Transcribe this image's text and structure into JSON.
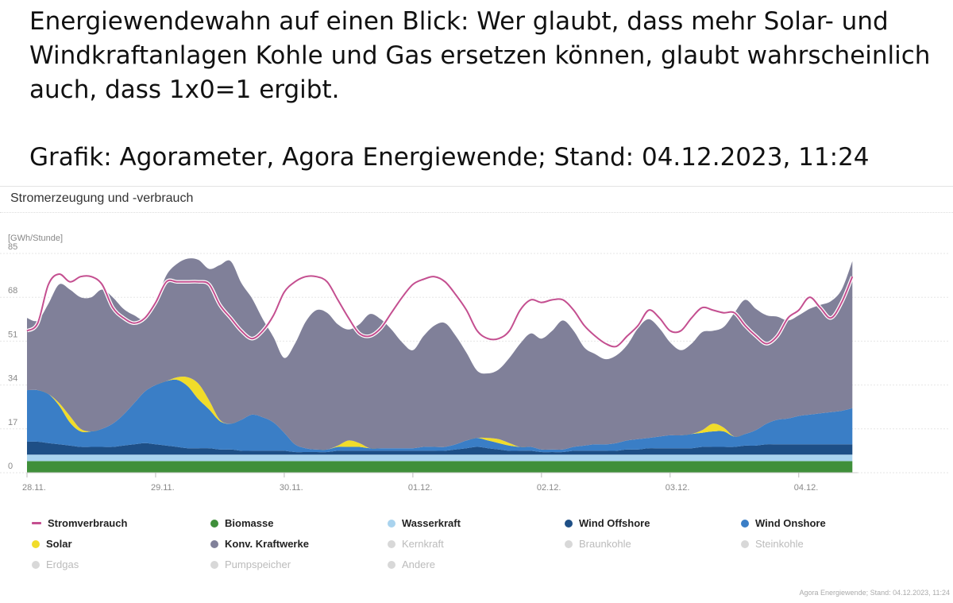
{
  "post": {
    "text": "Energiewendewahn auf einen Blick: Wer glaubt, dass mehr Solar- und Windkraftanlagen Kohle und Gas ersetzen können, glaubt wahrscheinlich auch, dass 1x0=1 ergibt.",
    "source": "Grafik: Agorameter, Agora Energiewende; Stand: 04.12.2023, 11:24"
  },
  "chart_data": {
    "type": "area",
    "title": "Stromerzeugung und -verbrauch",
    "ylabel": "[GWh/Stunde]",
    "ylim": [
      0,
      85
    ],
    "y_ticks": [
      "0",
      "17",
      "34",
      "51",
      "68",
      "85"
    ],
    "x_ticks": [
      "28.11.",
      "29.11.",
      "30.11.",
      "01.12.",
      "02.12.",
      "03.12.",
      "04.12."
    ],
    "x_tick_hours": [
      0,
      24,
      48,
      72,
      96,
      120,
      144
    ],
    "x_range_hours": [
      0,
      155
    ],
    "grid": true,
    "legend_position": "bottom",
    "sample_hours": [
      0,
      2,
      4,
      6,
      8,
      10,
      12,
      14,
      16,
      18,
      20,
      22,
      24,
      26,
      28,
      30,
      32,
      34,
      36,
      38,
      40,
      42,
      44,
      46,
      48,
      50,
      52,
      54,
      56,
      58,
      60,
      62,
      64,
      66,
      68,
      70,
      72,
      74,
      76,
      78,
      80,
      82,
      84,
      86,
      88,
      90,
      92,
      94,
      96,
      98,
      100,
      102,
      104,
      106,
      108,
      110,
      112,
      114,
      116,
      118,
      120,
      122,
      124,
      126,
      128,
      130,
      132,
      134,
      136,
      138,
      140,
      142,
      144,
      146,
      148,
      150,
      152,
      154
    ],
    "series": [
      {
        "name": "Biomasse",
        "color": "#3f8f3a",
        "stacked": true,
        "values": [
          4.5,
          4.5,
          4.5,
          4.5,
          4.5,
          4.5,
          4.5,
          4.5,
          4.5,
          4.5,
          4.5,
          4.5,
          4.5,
          4.5,
          4.5,
          4.5,
          4.5,
          4.5,
          4.5,
          4.5,
          4.5,
          4.5,
          4.5,
          4.5,
          4.5,
          4.5,
          4.5,
          4.5,
          4.5,
          4.5,
          4.5,
          4.5,
          4.5,
          4.5,
          4.5,
          4.5,
          4.5,
          4.5,
          4.5,
          4.5,
          4.5,
          4.5,
          4.5,
          4.5,
          4.5,
          4.5,
          4.5,
          4.5,
          4.5,
          4.5,
          4.5,
          4.5,
          4.5,
          4.5,
          4.5,
          4.5,
          4.5,
          4.5,
          4.5,
          4.5,
          4.5,
          4.5,
          4.5,
          4.5,
          4.5,
          4.5,
          4.5,
          4.5,
          4.5,
          4.5,
          4.5,
          4.5,
          4.5,
          4.5,
          4.5,
          4.5,
          4.5,
          4.5
        ]
      },
      {
        "name": "Wasserkraft",
        "color": "#a9d3ee",
        "stacked": true,
        "values": [
          2.5,
          2.5,
          2.5,
          2.5,
          2.5,
          2.5,
          2.5,
          2.5,
          2.5,
          2.5,
          2.5,
          2.5,
          2.5,
          2.5,
          2.5,
          2.5,
          2.5,
          2.5,
          2.5,
          2.5,
          2.5,
          2.5,
          2.5,
          2.5,
          2.5,
          2.5,
          2.5,
          2.5,
          2.5,
          2.5,
          2.5,
          2.5,
          2.5,
          2.5,
          2.5,
          2.5,
          2.5,
          2.5,
          2.5,
          2.5,
          2.5,
          2.5,
          2.5,
          2.5,
          2.5,
          2.5,
          2.5,
          2.5,
          2.5,
          2.5,
          2.5,
          2.5,
          2.5,
          2.5,
          2.5,
          2.5,
          2.5,
          2.5,
          2.5,
          2.5,
          2.5,
          2.5,
          2.5,
          2.5,
          2.5,
          2.5,
          2.5,
          2.5,
          2.5,
          2.5,
          2.5,
          2.5,
          2.5,
          2.5,
          2.5,
          2.5,
          2.5,
          2.5
        ]
      },
      {
        "name": "Wind Offshore",
        "color": "#1e4f86",
        "stacked": true,
        "values": [
          5,
          5,
          4.5,
          4,
          3.5,
          3,
          3,
          3,
          3,
          3.5,
          4,
          4.5,
          4,
          3.5,
          3,
          2.5,
          2.5,
          2.5,
          2,
          2,
          1.5,
          1.5,
          1.5,
          1.5,
          1.5,
          1,
          1,
          1,
          1,
          1.5,
          1.5,
          1.5,
          1.5,
          1.5,
          1.5,
          1.5,
          1.5,
          1.5,
          1.5,
          1.5,
          2,
          2.5,
          3,
          2.5,
          2,
          1.5,
          1.5,
          1.5,
          1,
          1,
          1,
          1.5,
          1.5,
          1.5,
          1.5,
          1.5,
          2,
          2,
          2.5,
          2.5,
          2.5,
          2.5,
          2.5,
          3,
          3,
          3,
          3,
          3.5,
          3.5,
          4,
          4,
          4,
          4,
          4,
          4,
          4,
          4,
          4
        ]
      },
      {
        "name": "Wind Onshore",
        "color": "#3a7ec6",
        "stacked": true,
        "values": [
          20,
          20,
          19,
          15,
          9,
          6,
          6,
          7,
          9,
          12,
          16,
          20,
          23,
          25,
          26,
          24,
          19,
          15,
          11,
          10,
          12,
          14,
          13,
          11,
          7,
          3,
          1.5,
          1,
          1,
          1.5,
          1.5,
          1.5,
          1,
          1,
          1,
          1,
          1,
          1.5,
          1.5,
          1.5,
          2,
          3,
          3.5,
          3,
          2.5,
          2,
          1.5,
          1.5,
          1,
          1,
          1,
          1.5,
          2,
          2.5,
          2.5,
          3,
          3.5,
          4,
          4,
          4.5,
          5,
          5,
          5.5,
          5.5,
          6,
          6,
          4,
          4.5,
          6,
          8,
          9.5,
          10,
          11,
          11.5,
          12,
          12.5,
          13,
          14
        ]
      },
      {
        "name": "Solar",
        "color": "#f1dc2a",
        "stacked": true,
        "values": [
          0,
          0,
          0,
          1,
          2.5,
          1,
          0,
          0,
          0,
          0,
          0,
          0,
          0,
          0,
          1,
          3.5,
          6,
          3.5,
          0.5,
          0,
          0,
          0,
          0,
          0,
          0,
          0,
          0,
          0,
          0,
          0.5,
          2.5,
          1.5,
          0,
          0,
          0,
          0,
          0,
          0,
          0,
          0,
          0,
          0,
          0,
          1,
          1.5,
          1,
          0,
          0,
          0,
          0,
          0,
          0,
          0,
          0,
          0,
          0,
          0,
          0,
          0,
          0,
          0,
          0,
          0,
          1,
          3,
          1.5,
          0,
          0,
          0,
          0,
          0,
          0,
          0,
          0,
          0,
          0,
          0,
          0
        ]
      },
      {
        "name": "Konv. Kraftwerke",
        "color": "#808099",
        "stacked": true,
        "values": [
          28,
          27,
          35,
          46,
          49,
          51,
          52,
          54,
          49,
          41,
          34,
          28,
          32,
          41,
          44,
          46,
          48,
          51,
          60,
          63,
          53,
          45,
          38,
          33,
          29,
          39,
          49,
          54,
          53,
          47,
          43,
          46,
          52,
          50,
          46,
          41,
          38,
          43,
          47,
          48,
          42,
          34,
          26,
          25,
          27,
          33,
          40,
          44,
          43,
          46,
          50,
          45,
          38,
          35,
          33,
          34,
          37,
          43,
          46,
          42,
          36,
          33,
          35,
          38,
          36,
          39,
          48,
          52,
          47,
          42,
          40,
          38,
          39,
          41,
          42,
          43,
          47,
          57
        ]
      },
      {
        "name": "Stromverbrauch",
        "color": "#c44f90",
        "stacked": false,
        "values": [
          55,
          58,
          73,
          77,
          74,
          76,
          76,
          73,
          64,
          60,
          58,
          60,
          66,
          74,
          74,
          74,
          74,
          73,
          65,
          60,
          55,
          52,
          55,
          61,
          70,
          74,
          76,
          76,
          74,
          67,
          60,
          54,
          53,
          56,
          62,
          68,
          73,
          75,
          76,
          74,
          69,
          63,
          55,
          52,
          52,
          55,
          63,
          67,
          66,
          67,
          67,
          63,
          57,
          53,
          50,
          49,
          53,
          57,
          63,
          60,
          55,
          55,
          60,
          64,
          63,
          62,
          62,
          57,
          53,
          50,
          53,
          60,
          63,
          68,
          64,
          60,
          66,
          76
        ]
      }
    ]
  },
  "legend": [
    {
      "label": "Stromverbrauch",
      "color": "#c44f90",
      "kind": "line",
      "active": true
    },
    {
      "label": "Biomasse",
      "color": "#3f8f3a",
      "kind": "dot",
      "active": true
    },
    {
      "label": "Wasserkraft",
      "color": "#a9d3ee",
      "kind": "dot",
      "active": true
    },
    {
      "label": "Wind Offshore",
      "color": "#1e4f86",
      "kind": "dot",
      "active": true
    },
    {
      "label": "Wind Onshore",
      "color": "#3a7ec6",
      "kind": "dot",
      "active": true
    },
    {
      "label": "Solar",
      "color": "#f1dc2a",
      "kind": "dot",
      "active": true
    },
    {
      "label": "Konv. Kraftwerke",
      "color": "#808099",
      "kind": "dot",
      "active": true
    },
    {
      "label": "Kernkraft",
      "color": "#d8d8d8",
      "kind": "dot",
      "active": false
    },
    {
      "label": "Braunkohle",
      "color": "#d8d8d8",
      "kind": "dot",
      "active": false
    },
    {
      "label": "Steinkohle",
      "color": "#d8d8d8",
      "kind": "dot",
      "active": false
    },
    {
      "label": "Erdgas",
      "color": "#d8d8d8",
      "kind": "dot",
      "active": false
    },
    {
      "label": "Pumpspeicher",
      "color": "#d8d8d8",
      "kind": "dot",
      "active": false
    },
    {
      "label": "Andere",
      "color": "#d8d8d8",
      "kind": "dot",
      "active": false
    }
  ],
  "footer_source": "Agora Energiewende; Stand: 04.12.2023, 11:24"
}
